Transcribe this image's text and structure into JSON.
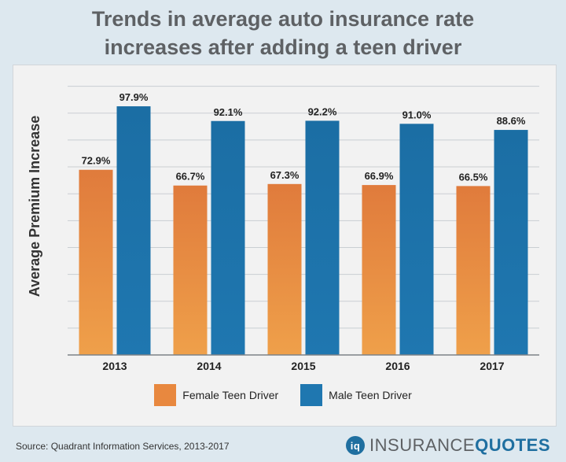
{
  "brand": {
    "name_part1": "INSURANCE",
    "name_part2": "QUOTES",
    "logo_glyph": "iq"
  },
  "source": "Source:  Quadrant Information Services, 2013-2017",
  "colors": {
    "female": "#e07b3c",
    "female_light": "#efa04a",
    "male": "#1f77b0",
    "male_dark": "#1b6ea4"
  },
  "chart_data": {
    "type": "bar",
    "title_lines": [
      "Trends in average auto insurance rate",
      "increases after adding a teen driver"
    ],
    "xlabel": "",
    "ylabel": "Average Premium Increase",
    "categories": [
      "2013",
      "2014",
      "2015",
      "2016",
      "2017"
    ],
    "series": [
      {
        "name": "Female Teen Driver",
        "values": [
          72.9,
          66.7,
          67.3,
          66.9,
          66.5
        ],
        "labels": [
          "72.9%",
          "66.7%",
          "67.3%",
          "66.9%",
          "66.5%"
        ]
      },
      {
        "name": "Male Teen Driver",
        "values": [
          97.9,
          92.1,
          92.2,
          91.0,
          88.6
        ],
        "labels": [
          "97.9%",
          "92.1%",
          "92.2%",
          "91.0%",
          "88.6%"
        ]
      }
    ],
    "ylim": [
      0,
      110
    ],
    "grid": true,
    "legend": "bottom"
  }
}
